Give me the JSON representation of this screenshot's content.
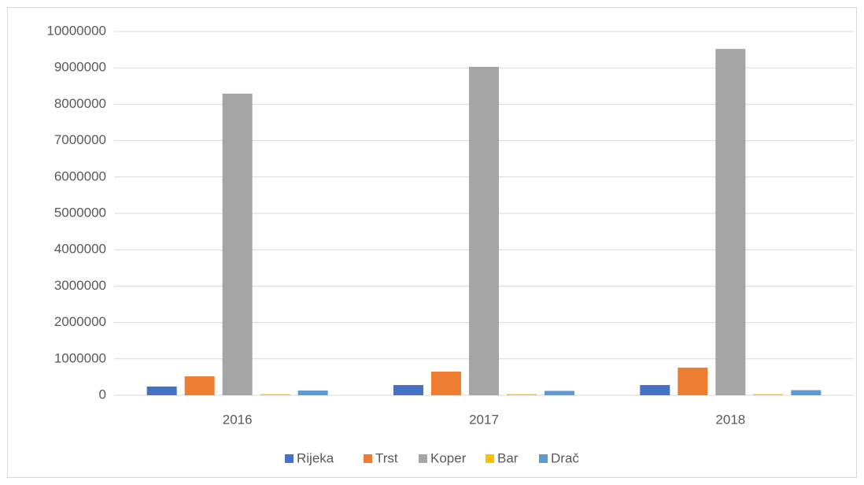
{
  "chart_data": {
    "type": "bar",
    "categories": [
      "2016",
      "2017",
      "2018"
    ],
    "series": [
      {
        "name": "Rijeka",
        "color": "#4472c4",
        "values": [
          240000,
          280000,
          280000
        ]
      },
      {
        "name": "Trst",
        "color": "#ed7d31",
        "values": [
          520000,
          650000,
          760000
        ]
      },
      {
        "name": "Koper",
        "color": "#a5a5a5",
        "values": [
          8290000,
          9030000,
          9520000
        ]
      },
      {
        "name": "Bar",
        "color": "#ffc000",
        "values": [
          30000,
          30000,
          30000
        ]
      },
      {
        "name": "Drač",
        "color": "#5b9bd5",
        "values": [
          130000,
          120000,
          140000
        ]
      }
    ],
    "ylim": [
      0,
      10000000
    ],
    "yticks": [
      0,
      1000000,
      2000000,
      3000000,
      4000000,
      5000000,
      6000000,
      7000000,
      8000000,
      9000000,
      10000000
    ],
    "grid": true,
    "legend": "bottom"
  }
}
